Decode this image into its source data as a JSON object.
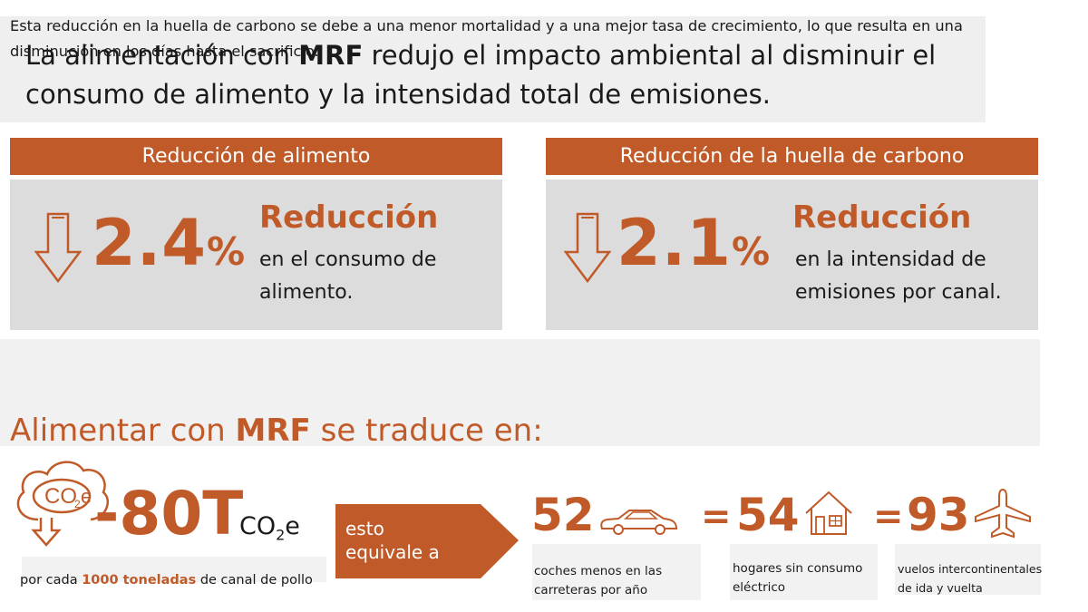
{
  "headline": {
    "pre": "La alimentación con ",
    "bold": "MRF",
    "post": " redujo el impacto ambiental al disminuir el consumo de alimento y la intensidad total de emisiones."
  },
  "cards": [
    {
      "header": "Reducción de alimento",
      "value": "2.4",
      "unit": "%",
      "title": "Reducción",
      "desc_line1": "en el consumo de",
      "desc_line2": "alimento."
    },
    {
      "header": "Reducción de la huella de carbono",
      "value": "2.1",
      "unit": "%",
      "title": "Reducción",
      "desc_line1": "en la intensidad de",
      "desc_line2": "emisiones por canal."
    }
  ],
  "explanation": "Esta reducción en la huella de carbono se debe a una menor mortalidad y a una mejor tasa de crecimiento, lo que resulta en una disminución en los días hasta el sacrificio.",
  "translation_heading": {
    "pre": "Alimentar con ",
    "bold": "MRF",
    "post": " se traduce en:"
  },
  "co2": {
    "icon_text": "CO",
    "icon_sub": "2",
    "icon_suffix": "e",
    "value": "-80T",
    "unit_main": "CO",
    "unit_sub": "2",
    "unit_suffix": "e",
    "per_pre": "por cada ",
    "per_bold": "1000 toneladas",
    "per_post": " de canal de pollo"
  },
  "equivalent_label": "esto equivale a",
  "equivalents": [
    {
      "prefix": "",
      "value": "52",
      "icon": "car-icon",
      "label_line1": "coches menos en las",
      "label_line2": "carreteras por año"
    },
    {
      "prefix": "=",
      "value": "54",
      "icon": "house-icon",
      "label_line1": "hogares sin consumo",
      "label_line2": "eléctrico"
    },
    {
      "prefix": "=",
      "value": "93",
      "icon": "airplane-icon",
      "label_line1": "vuelos intercontinentales",
      "label_line2": "de ida y vuelta"
    }
  ],
  "colors": {
    "accent": "#c05a28",
    "panel": "#dcdcdc",
    "light_panel": "#efefef"
  }
}
